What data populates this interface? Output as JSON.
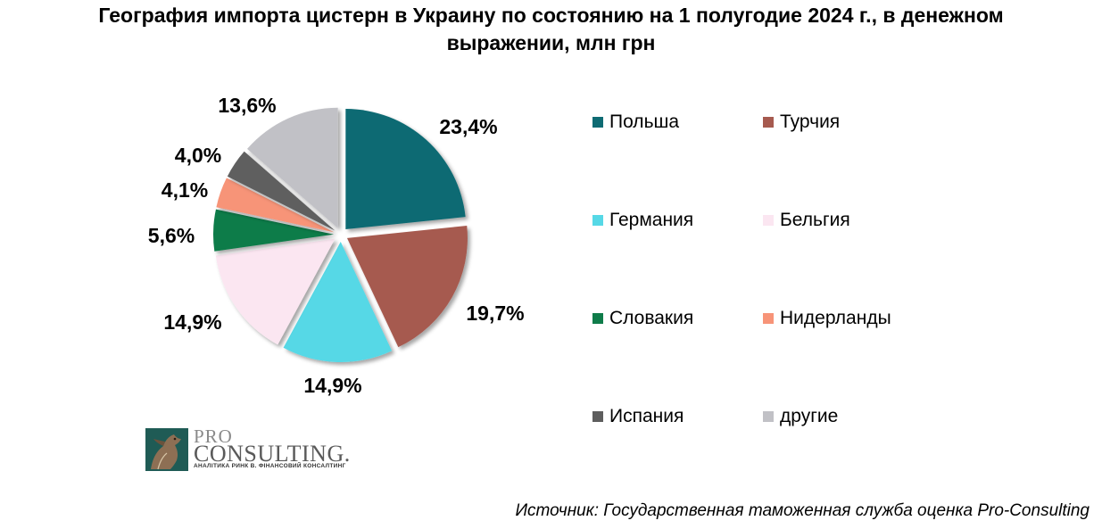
{
  "title": {
    "line1": "География импорта цистерн в Украину по состоянию на 1 полугодие 2024 г., в денежном",
    "line2": "выражении, млн грн"
  },
  "chart_data": {
    "type": "pie",
    "title": "География импорта цистерн в Украину по состоянию на 1 полугодие 2024 г., в денежном выражении, млн грн",
    "unit": "%",
    "categories": [
      "Польша",
      "Турчия",
      "Германия",
      "Бельгия",
      "Словакия",
      "Нидерланды",
      "Испания",
      "другие"
    ],
    "values": [
      23.4,
      19.7,
      14.9,
      14.9,
      5.6,
      4.1,
      4.0,
      13.6
    ],
    "data_labels": [
      "23,4%",
      "19,7%",
      "14,9%",
      "14,9%",
      "5,6%",
      "4,1%",
      "4,0%",
      "13,6%"
    ],
    "colors": [
      "#0e6b73",
      "#a65a4f",
      "#56d8e6",
      "#fbe6f1",
      "#0f7c4a",
      "#f79478",
      "#5e5e5e",
      "#c1c1c6"
    ],
    "start": "12 o'clock",
    "direction": "clockwise",
    "exploded": true,
    "legend_position": "right"
  },
  "legend": {
    "items": [
      {
        "label": "Польша",
        "color": "#0e6b73"
      },
      {
        "label": "Турчия",
        "color": "#a65a4f"
      },
      {
        "label": "Германия",
        "color": "#56d8e6"
      },
      {
        "label": "Бельгия",
        "color": "#fbe6f1"
      },
      {
        "label": "Словакия",
        "color": "#0f7c4a"
      },
      {
        "label": "Нидерланды",
        "color": "#f79478"
      },
      {
        "label": "Испания",
        "color": "#5e5e5e"
      },
      {
        "label": "другие",
        "color": "#c1c1c6"
      }
    ]
  },
  "logo": {
    "pro": "PRO",
    "consulting": "CONSULTING.",
    "tagline": "АНАЛІТИКА РИНК В. ФІНАНСОВИЙ КОНСАЛТИНГ"
  },
  "source": "Источник: Государственная таможенная служба оценка Pro-Consulting"
}
